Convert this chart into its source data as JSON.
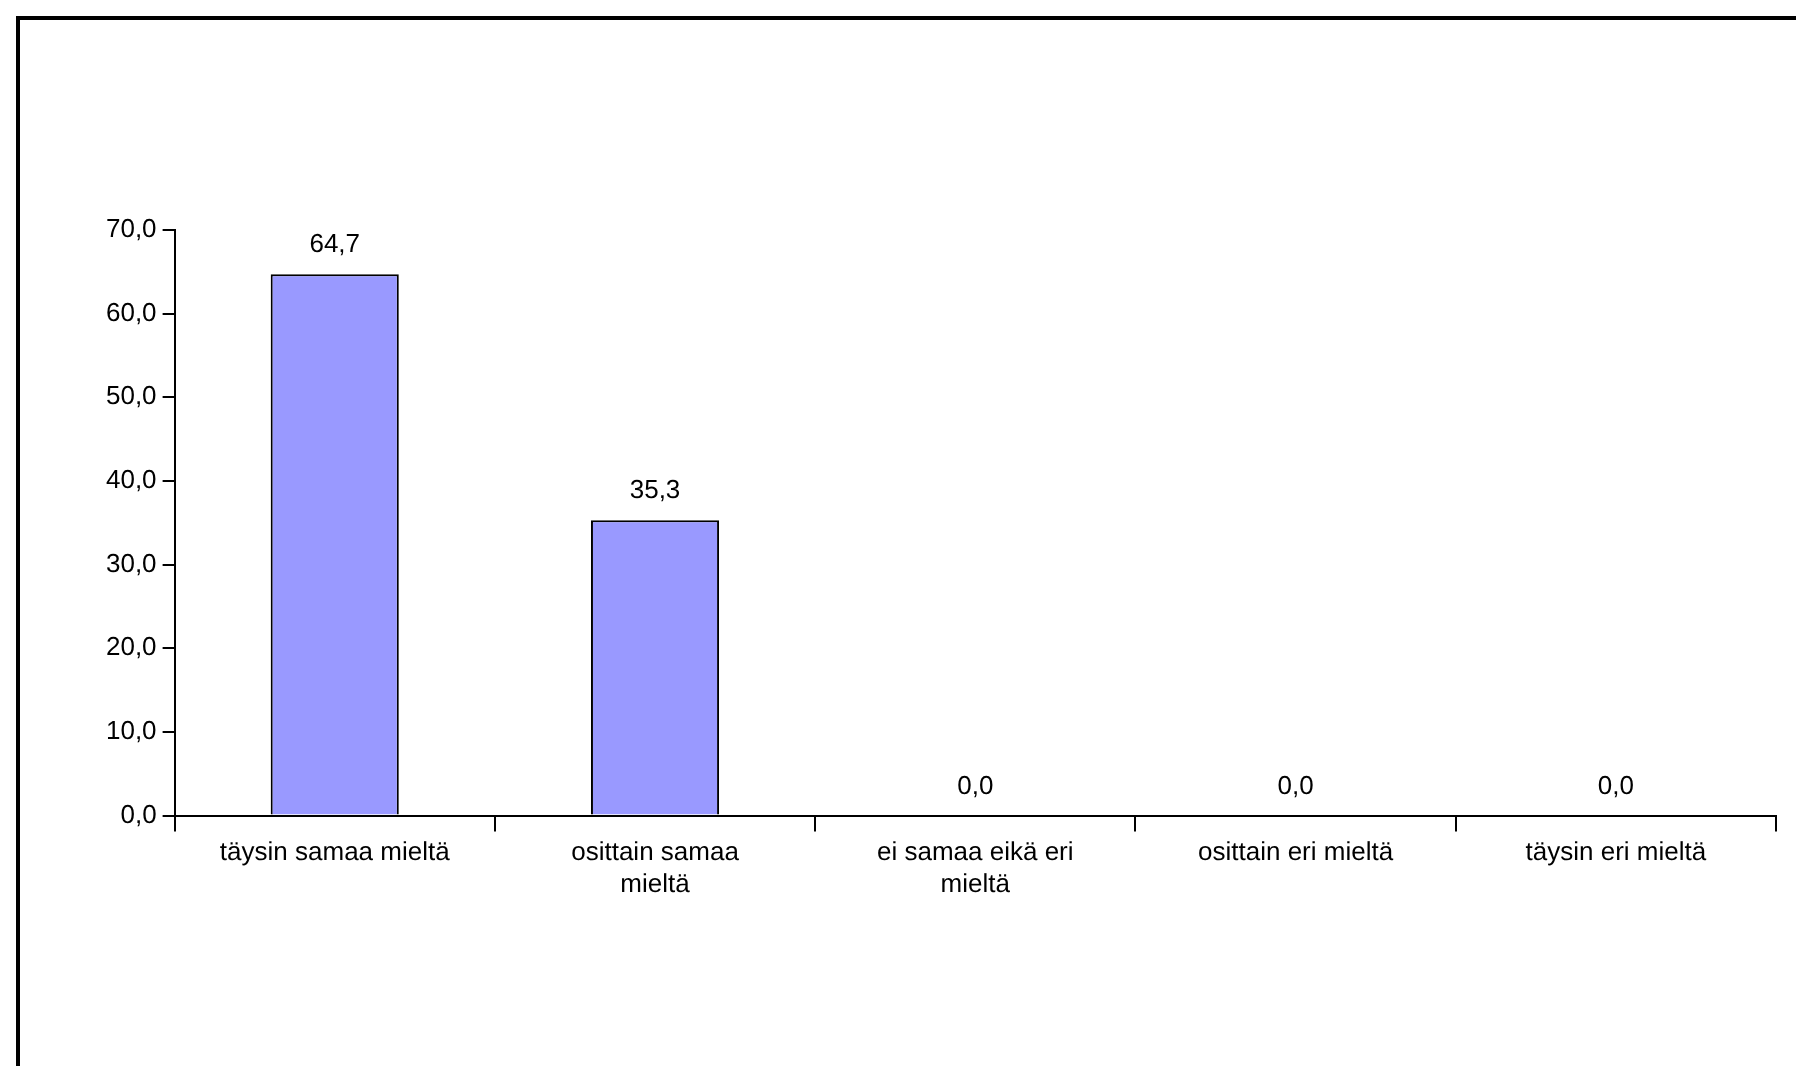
{
  "chart_data": {
    "type": "bar",
    "categories": [
      "täysin samaa mieltä",
      "osittain samaa mieltä",
      "ei samaa eikä eri mieltä",
      "osittain eri mieltä",
      "täysin eri mieltä"
    ],
    "values": [
      64.7,
      35.3,
      0.0,
      0.0,
      0.0
    ],
    "value_labels": [
      "64,7",
      "35,3",
      "0,0",
      "0,0",
      "0,0"
    ],
    "color": "#9999ff",
    "ylim": [
      0,
      70
    ],
    "yticks": [
      {
        "value": 0,
        "label": "0,0"
      },
      {
        "value": 10,
        "label": "10,0"
      },
      {
        "value": 20,
        "label": "20,0"
      },
      {
        "value": 30,
        "label": "30,0"
      },
      {
        "value": 40,
        "label": "40,0"
      },
      {
        "value": 50,
        "label": "50,0"
      },
      {
        "value": 60,
        "label": "60,0"
      },
      {
        "value": 70,
        "label": "70,0"
      }
    ]
  }
}
